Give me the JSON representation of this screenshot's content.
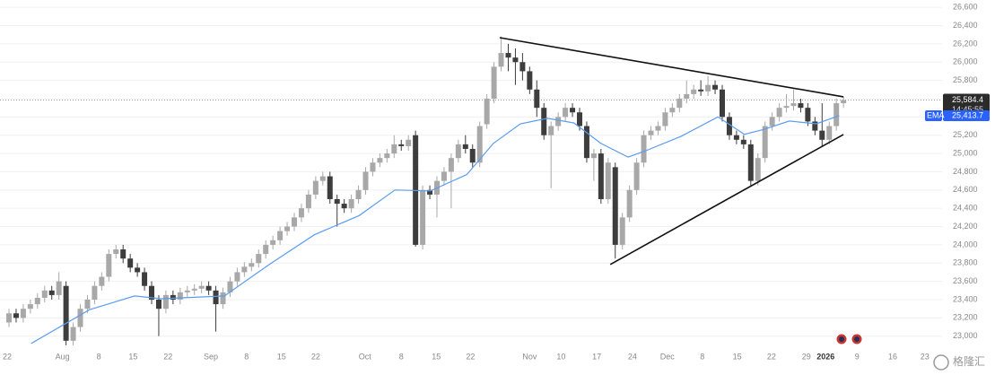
{
  "chart_data": {
    "type": "candlestick",
    "xlim": [
      -1.26,
      130.82
    ],
    "ylim": [
      22850,
      26680
    ],
    "grid": true,
    "up_color": "#a8a8a8",
    "down_color": "#3d3d3d",
    "yticks": [
      {
        "value": 23000,
        "label": "23,000"
      },
      {
        "value": 23200,
        "label": "23,200"
      },
      {
        "value": 23400,
        "label": "23,400"
      },
      {
        "value": 23600,
        "label": "23,600"
      },
      {
        "value": 23800,
        "label": "23,800"
      },
      {
        "value": 24000,
        "label": "24,000"
      },
      {
        "value": 24200,
        "label": "24,200"
      },
      {
        "value": 24400,
        "label": "24,400"
      },
      {
        "value": 24600,
        "label": "24,600"
      },
      {
        "value": 24800,
        "label": "24,800"
      },
      {
        "value": 25000,
        "label": "25,000"
      },
      {
        "value": 25200,
        "label": "25,200"
      },
      {
        "value": 25400,
        "label": "25,400"
      },
      {
        "value": 25600,
        "label": "25,600"
      },
      {
        "value": 25800,
        "label": "25,800"
      },
      {
        "value": 26000,
        "label": "26,000"
      },
      {
        "value": 26200,
        "label": "26,200"
      },
      {
        "value": 26400,
        "label": "26,400"
      },
      {
        "value": 26600,
        "label": "26,600"
      }
    ],
    "xticks": [
      {
        "value": -0.25,
        "label": "22"
      },
      {
        "value": 7.5,
        "label": "Aug"
      },
      {
        "value": 12.6,
        "label": "8"
      },
      {
        "value": 17.4,
        "label": "15"
      },
      {
        "value": 22.3,
        "label": "22"
      },
      {
        "value": 28.3,
        "label": "Sep"
      },
      {
        "value": 33.3,
        "label": "8"
      },
      {
        "value": 38.2,
        "label": "15"
      },
      {
        "value": 43,
        "label": "22"
      },
      {
        "value": 49.9,
        "label": "Oct"
      },
      {
        "value": 55,
        "label": "8"
      },
      {
        "value": 59.9,
        "label": "15"
      },
      {
        "value": 64.7,
        "label": "22"
      },
      {
        "value": 73,
        "label": "Nov"
      },
      {
        "value": 77.4,
        "label": "10"
      },
      {
        "value": 82.4,
        "label": "17"
      },
      {
        "value": 87.4,
        "label": "24"
      },
      {
        "value": 92.3,
        "label": "Dec"
      },
      {
        "value": 97.2,
        "label": "8"
      },
      {
        "value": 102.1,
        "label": "15"
      },
      {
        "value": 106.9,
        "label": "22"
      },
      {
        "value": 111.8,
        "label": "29"
      },
      {
        "value": 114.5,
        "label": "2026",
        "bold": true
      },
      {
        "value": 118.9,
        "label": "9"
      },
      {
        "value": 123.9,
        "label": "16"
      },
      {
        "value": 128.4,
        "label": "23"
      }
    ],
    "open": [
      23150,
      23250,
      23200,
      23300,
      23350,
      23420,
      23500,
      23450,
      23550,
      22950,
      23100,
      23300,
      23400,
      23550,
      23650,
      23900,
      23950,
      23850,
      23750,
      23700,
      23550,
      23400,
      23300,
      23450,
      23400,
      23480,
      23500,
      23520,
      23550,
      23500,
      23350,
      23480,
      23600,
      23700,
      23760,
      23800,
      23900,
      24000,
      24050,
      24150,
      24200,
      24300,
      24400,
      24550,
      24700,
      24750,
      24500,
      24450,
      24400,
      24500,
      24600,
      24800,
      24900,
      24950,
      25000,
      25100,
      25080,
      25200,
      24000,
      24600,
      24550,
      24700,
      24800,
      24950,
      25100,
      25050,
      24900,
      25320,
      25600,
      25950,
      26100,
      26050,
      26000,
      25900,
      25700,
      25500,
      25200,
      25300,
      25400,
      25500,
      25450,
      25300,
      24950,
      25000,
      24500,
      24850,
      24000,
      24300,
      24600,
      24900,
      25200,
      25250,
      25300,
      25450,
      25500,
      25600,
      25650,
      25700,
      25680,
      25750,
      25700,
      25400,
      25200,
      25150,
      25100,
      24700,
      24950,
      25300,
      25400,
      25500,
      25520,
      25550,
      25500,
      25350,
      25250,
      25150,
      25300,
      25550
    ],
    "high": [
      23300,
      23300,
      23350,
      23400,
      23470,
      23550,
      23550,
      23700,
      23600,
      23150,
      23350,
      23450,
      23600,
      23700,
      23950,
      24000,
      24000,
      23900,
      23800,
      23750,
      23600,
      23450,
      23500,
      23500,
      23530,
      23550,
      23570,
      23600,
      23600,
      23550,
      23530,
      23650,
      23750,
      23810,
      23850,
      23950,
      24050,
      24100,
      24200,
      24250,
      24350,
      24450,
      24600,
      24750,
      24800,
      24800,
      24550,
      24500,
      24550,
      24650,
      24850,
      24950,
      25000,
      25050,
      25200,
      25150,
      25200,
      25250,
      24650,
      24650,
      24750,
      24850,
      25000,
      25150,
      25200,
      25100,
      25350,
      25650,
      26000,
      26280,
      26200,
      26150,
      26100,
      25950,
      25800,
      25550,
      25350,
      25450,
      25550,
      25550,
      25500,
      25350,
      25050,
      25050,
      24950,
      24900,
      24350,
      24650,
      24950,
      25250,
      25300,
      25350,
      25500,
      25550,
      25650,
      25800,
      25750,
      25800,
      25850,
      25800,
      25750,
      25450,
      25250,
      25200,
      25150,
      25000,
      25350,
      25450,
      25550,
      25650,
      25700,
      25600,
      25550,
      25400,
      25550,
      25350,
      25600,
      25620
    ],
    "low": [
      23100,
      23150,
      23150,
      23250,
      23300,
      23370,
      23400,
      23400,
      22900,
      22900,
      23050,
      23250,
      23350,
      23500,
      23600,
      23850,
      23800,
      23700,
      23650,
      23500,
      23350,
      23000,
      23250,
      23350,
      23350,
      23430,
      23450,
      23470,
      23450,
      23050,
      23300,
      23430,
      23550,
      23650,
      23710,
      23750,
      23850,
      23950,
      24000,
      24100,
      24150,
      24250,
      24350,
      24500,
      24650,
      24450,
      24200,
      24350,
      24350,
      24450,
      24550,
      24750,
      24850,
      24900,
      24950,
      25030,
      25030,
      23980,
      23950,
      24500,
      24300,
      24650,
      24400,
      24900,
      25000,
      24850,
      24850,
      25270,
      25550,
      25900,
      25900,
      25750,
      25800,
      25650,
      25400,
      25150,
      24620,
      25250,
      25350,
      25400,
      25250,
      24900,
      24700,
      24450,
      24450,
      23850,
      23950,
      24250,
      24550,
      24850,
      25150,
      25200,
      25250,
      25400,
      25450,
      25550,
      25600,
      25630,
      25630,
      25650,
      25350,
      25150,
      25100,
      25050,
      24650,
      24650,
      24900,
      25250,
      25350,
      25450,
      25470,
      25450,
      25300,
      25200,
      25080,
      25100,
      25250,
      25500
    ],
    "close": [
      23250,
      23200,
      23300,
      23350,
      23420,
      23500,
      23450,
      23600,
      22950,
      23100,
      23300,
      23400,
      23550,
      23650,
      23900,
      23950,
      23850,
      23750,
      23700,
      23550,
      23400,
      23300,
      23450,
      23400,
      23480,
      23500,
      23520,
      23550,
      23500,
      23350,
      23480,
      23600,
      23700,
      23760,
      23800,
      23900,
      24000,
      24050,
      24150,
      24200,
      24300,
      24400,
      24550,
      24700,
      24750,
      24500,
      24450,
      24400,
      24500,
      24600,
      24800,
      24900,
      24950,
      25000,
      25100,
      25080,
      25150,
      24000,
      24600,
      24550,
      24700,
      24800,
      24950,
      25100,
      25050,
      24900,
      25300,
      25600,
      25950,
      26100,
      26050,
      26000,
      25900,
      25700,
      25500,
      25200,
      25300,
      25400,
      25500,
      25450,
      25300,
      24950,
      25000,
      24500,
      24900,
      24000,
      24300,
      24600,
      24900,
      25200,
      25250,
      25300,
      25450,
      25500,
      25600,
      25650,
      25700,
      25680,
      25750,
      25700,
      25400,
      25200,
      25150,
      25100,
      24700,
      24950,
      25300,
      25400,
      25500,
      25520,
      25550,
      25500,
      25350,
      25250,
      25150,
      25300,
      25550,
      25584.4
    ],
    "ema": {
      "name": "EMA",
      "color": "#5b9cf0",
      "x": [
        3.1,
        11.3,
        17.6,
        21.4,
        30.2,
        36.5,
        42.8,
        49.1,
        54.1,
        59.1,
        64.2,
        67.9,
        71.7,
        75.5,
        79.2,
        83,
        86.8,
        89.3,
        94.3,
        99.4,
        103.1,
        105.7,
        109.4,
        113.2,
        116.4
      ],
      "values": [
        22920,
        23290,
        23440,
        23410,
        23440,
        23785,
        24110,
        24320,
        24600,
        24590,
        24770,
        25110,
        25325,
        25385,
        25335,
        25110,
        24960,
        25030,
        25190,
        25400,
        25210,
        25260,
        25355,
        25325,
        25414
      ]
    },
    "trendlines": [
      {
        "color": "#111111",
        "x": [
          68.8,
          117
        ],
        "values": [
          26268,
          25620
        ]
      },
      {
        "color": "#111111",
        "x": [
          84.3,
          117
        ],
        "values": [
          23785,
          25208
        ]
      }
    ],
    "last_price": {
      "value": 25584.4,
      "label": "25,584.4"
    },
    "countdown": "14:45:55",
    "ema_last": {
      "value": 25413.7,
      "label": "25,413.7"
    },
    "watermark": "格隆汇"
  }
}
